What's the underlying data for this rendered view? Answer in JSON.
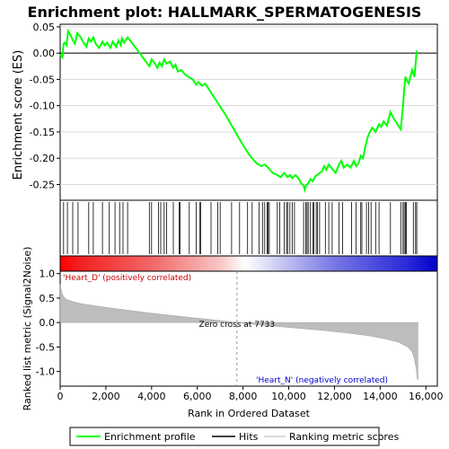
{
  "chart_data": {
    "type": "line",
    "title": "Enrichment plot: HALLMARK_SPERMATOGENESIS",
    "panels": {
      "enrichment": {
        "ylabel": "Enrichment score (ES)",
        "ylim": [
          -0.28,
          0.055
        ],
        "yticks": [
          0.05,
          0.0,
          -0.05,
          -0.1,
          -0.15,
          -0.2,
          -0.25
        ],
        "ytick_labels": [
          "0.05",
          "0.00",
          "-0.05",
          "-0.10",
          "-0.15",
          "-0.20",
          "-0.25"
        ],
        "grid": true,
        "series": [
          {
            "name": "Enrichment profile",
            "color": "#00ff00",
            "x": [
              0,
              100,
              150,
              200,
              280,
              350,
              450,
              550,
              650,
              750,
              900,
              1050,
              1150,
              1250,
              1350,
              1450,
              1550,
              1700,
              1850,
              1950,
              2050,
              2200,
              2300,
              2450,
              2550,
              2650,
              2700,
              2800,
              2950,
              3050,
              3200,
              3400,
              3650,
              3900,
              4000,
              4150,
              4250,
              4350,
              4450,
              4550,
              4650,
              4800,
              4950,
              5050,
              5150,
              5300,
              5450,
              5600,
              5800,
              5950,
              6050,
              6200,
              6350,
              6600,
              6900,
              7200,
              7600,
              8000,
              8300,
              8600,
              8800,
              8950,
              9100,
              9300,
              9500,
              9650,
              9800,
              9950,
              10050,
              10150,
              10300,
              10450,
              10550,
              10650,
              10700,
              10750,
              10850,
              10950,
              11050,
              11150,
              11300,
              11450,
              11550,
              11650,
              11750,
              11900,
              12050,
              12200,
              12300,
              12400,
              12550,
              12700,
              12850,
              12950,
              13050,
              13150,
              13250,
              13350,
              13450,
              13550,
              13650,
              13800,
              13950,
              14050,
              14150,
              14300,
              14450,
              14600,
              14750,
              14900,
              15000,
              15050,
              15100,
              15150,
              15250,
              15400,
              15500,
              15600
            ],
            "y": [
              -0.003,
              -0.008,
              0.018,
              0.02,
              0.015,
              0.042,
              0.035,
              0.025,
              0.018,
              0.038,
              0.03,
              0.018,
              0.012,
              0.028,
              0.022,
              0.03,
              0.018,
              0.01,
              0.022,
              0.015,
              0.02,
              0.01,
              0.022,
              0.012,
              0.024,
              0.015,
              0.028,
              0.02,
              0.03,
              0.025,
              0.016,
              0.005,
              -0.01,
              -0.025,
              -0.012,
              -0.02,
              -0.028,
              -0.018,
              -0.025,
              -0.012,
              -0.02,
              -0.016,
              -0.028,
              -0.022,
              -0.035,
              -0.032,
              -0.04,
              -0.045,
              -0.05,
              -0.06,
              -0.055,
              -0.062,
              -0.058,
              -0.075,
              -0.095,
              -0.115,
              -0.145,
              -0.175,
              -0.195,
              -0.21,
              -0.215,
              -0.212,
              -0.218,
              -0.228,
              -0.232,
              -0.236,
              -0.228,
              -0.236,
              -0.232,
              -0.238,
              -0.232,
              -0.24,
              -0.248,
              -0.252,
              -0.26,
              -0.252,
              -0.248,
              -0.24,
              -0.244,
              -0.235,
              -0.23,
              -0.225,
              -0.215,
              -0.222,
              -0.212,
              -0.22,
              -0.228,
              -0.212,
              -0.205,
              -0.218,
              -0.212,
              -0.218,
              -0.205,
              -0.215,
              -0.21,
              -0.195,
              -0.2,
              -0.178,
              -0.16,
              -0.15,
              -0.142,
              -0.15,
              -0.135,
              -0.14,
              -0.13,
              -0.138,
              -0.112,
              -0.125,
              -0.135,
              -0.145,
              -0.1,
              -0.07,
              -0.045,
              -0.05,
              -0.058,
              -0.032,
              -0.045,
              0.005
            ]
          }
        ]
      },
      "hits": {
        "label": "Hits",
        "x": [
          150,
          320,
          550,
          780,
          1250,
          1450,
          1850,
          2150,
          2400,
          2600,
          2750,
          2950,
          3900,
          4000,
          4300,
          4400,
          4550,
          4650,
          4950,
          5200,
          5250,
          5650,
          5950,
          6100,
          6150,
          6600,
          6900,
          7000,
          7500,
          7850,
          8200,
          8400,
          8700,
          8850,
          8950,
          9050,
          9100,
          9150,
          9500,
          9600,
          9800,
          9900,
          9950,
          10050,
          10150,
          10250,
          10650,
          10750,
          10800,
          10850,
          10950,
          11050,
          11100,
          11200,
          11250,
          11350,
          11600,
          11750,
          11900,
          12200,
          12350,
          12750,
          12950,
          13150,
          13200,
          13400,
          13500,
          13600,
          13800,
          13950,
          14450,
          14900,
          15000,
          15050,
          15100,
          15150,
          15450,
          15550,
          15600
        ]
      },
      "ranked_metric": {
        "ylabel": "Ranked list metric (Signal2Noise)",
        "xlabel": "Rank in Ordered Dataset",
        "xlim": [
          0,
          16500
        ],
        "ylim": [
          -1.3,
          1.05
        ],
        "xticks": [
          0,
          2000,
          4000,
          6000,
          8000,
          10000,
          12000,
          14000,
          16000
        ],
        "xtick_labels": [
          "0",
          "2,000",
          "4,000",
          "6,000",
          "8,000",
          "10,000",
          "12,000",
          "14,000",
          "16,000"
        ],
        "yticks": [
          1.0,
          0.5,
          0.0,
          -0.5,
          -1.0
        ],
        "ytick_labels": [
          "1.0",
          "0.5",
          "0.0",
          "-0.5",
          "-1.0"
        ],
        "zero_cross": 7733,
        "zero_cross_label": "Zero cross at 7733",
        "positive_label": "'Heart_D' (positively correlated)",
        "negative_label": "'Heart_N' (negatively correlated)",
        "x": [
          0,
          30,
          80,
          150,
          300,
          600,
          1000,
          2000,
          3000,
          4000,
          5000,
          6000,
          7000,
          7733,
          8500,
          9500,
          10500,
          11500,
          12500,
          13500,
          14200,
          14800,
          15200,
          15400,
          15500,
          15580,
          15620,
          15650
        ],
        "y": [
          0.78,
          0.7,
          0.6,
          0.53,
          0.47,
          0.42,
          0.38,
          0.31,
          0.25,
          0.19,
          0.14,
          0.09,
          0.04,
          0.0,
          -0.04,
          -0.08,
          -0.12,
          -0.16,
          -0.21,
          -0.27,
          -0.33,
          -0.4,
          -0.5,
          -0.6,
          -0.75,
          -0.95,
          -1.15,
          -1.18
        ]
      },
      "n_genes": 15650
    },
    "legend": {
      "placement": "bottom",
      "entries": [
        {
          "label": "Enrichment profile",
          "color": "#00ff00"
        },
        {
          "label": "Hits",
          "color": "#000000"
        },
        {
          "label": "Ranking metric scores",
          "color": "#cccccc"
        }
      ]
    }
  }
}
